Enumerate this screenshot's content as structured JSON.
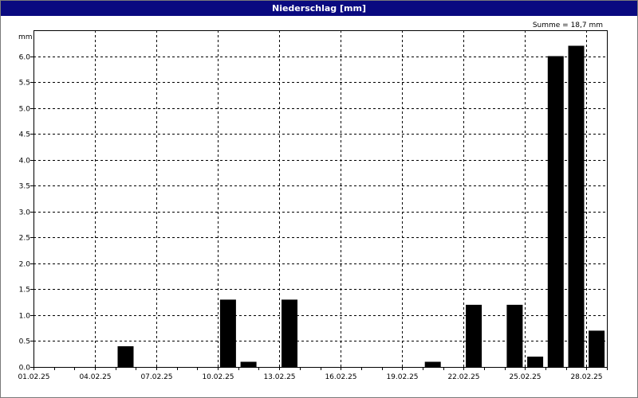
{
  "window": {
    "title": "Niederschlag [mm]"
  },
  "chart_data": {
    "type": "bar",
    "title": "Niederschlag [mm]",
    "ylabel": "mm",
    "xlabel": "",
    "summary": "Summe = 18,7 mm",
    "ylim": [
      0,
      6.5
    ],
    "yticks": [
      0,
      0.5,
      1,
      1.5,
      2,
      2.5,
      3,
      3.5,
      4,
      4.5,
      5,
      5.5,
      6
    ],
    "ytick_labels": [
      "0.0",
      "0.5",
      "1.0",
      "1.5",
      "2.0",
      "2.5",
      "3.0",
      "3.5",
      "4.0",
      "4.5",
      "5.0",
      "5.5",
      "6.0"
    ],
    "xtick_labels": [
      "01.02.25",
      "04.02.25",
      "07.02.25",
      "10.02.25",
      "13.02.25",
      "16.02.25",
      "19.02.25",
      "22.02.25",
      "25.02.25",
      "28.02.25"
    ],
    "categories": [
      "01.02.25",
      "02.02.25",
      "03.02.25",
      "04.02.25",
      "05.02.25",
      "06.02.25",
      "07.02.25",
      "08.02.25",
      "09.02.25",
      "10.02.25",
      "11.02.25",
      "12.02.25",
      "13.02.25",
      "14.02.25",
      "15.02.25",
      "16.02.25",
      "17.02.25",
      "18.02.25",
      "19.02.25",
      "20.02.25",
      "21.02.25",
      "22.02.25",
      "23.02.25",
      "24.02.25",
      "25.02.25",
      "26.02.25",
      "27.02.25",
      "28.02.25"
    ],
    "values": [
      0,
      0,
      0,
      0,
      0.4,
      0,
      0,
      0,
      0,
      1.3,
      0.1,
      0,
      1.3,
      0,
      0,
      0,
      0,
      0,
      0,
      0.1,
      0,
      1.2,
      0,
      1.2,
      0.2,
      6.0,
      6.2,
      0.7
    ],
    "grid": true,
    "legend": "none",
    "bar_color": "#000000"
  }
}
